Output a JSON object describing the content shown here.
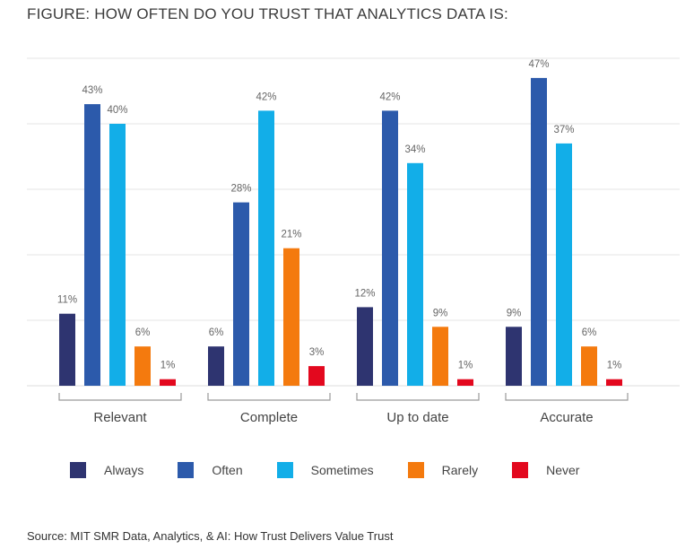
{
  "title": "FIGURE: HOW OFTEN DO YOU TRUST THAT ANALYTICS DATA IS:",
  "source": "Source: MIT SMR Data, Analytics, & AI: How Trust Delivers Value Trust",
  "chart_data": {
    "type": "bar",
    "categories": [
      "Relevant",
      "Complete",
      "Up to date",
      "Accurate"
    ],
    "series": [
      {
        "name": "Always",
        "color": "#2e3470",
        "values": [
          11,
          6,
          12,
          9
        ],
        "labels": [
          "11%",
          "6%",
          "12%",
          "9%"
        ]
      },
      {
        "name": "Often",
        "color": "#2c5aab",
        "values": [
          43,
          28,
          42,
          47
        ],
        "labels": [
          "43%",
          "28%",
          "42%",
          "47%"
        ]
      },
      {
        "name": "Sometimes",
        "color": "#12aee8",
        "values": [
          40,
          42,
          34,
          37
        ],
        "labels": [
          "40%",
          "42%",
          "34%",
          "37%"
        ]
      },
      {
        "name": "Rarely",
        "color": "#f47a0e",
        "values": [
          6,
          21,
          9,
          6
        ],
        "labels": [
          "6%",
          "21%",
          "9%",
          "6%"
        ]
      },
      {
        "name": "Never",
        "color": "#e3081e",
        "values": [
          1,
          3,
          1,
          1
        ],
        "labels": [
          "1%",
          "3%",
          "1%",
          "1%"
        ]
      }
    ],
    "ylim": [
      0,
      50
    ],
    "grid": true,
    "legend_position": "bottom"
  }
}
